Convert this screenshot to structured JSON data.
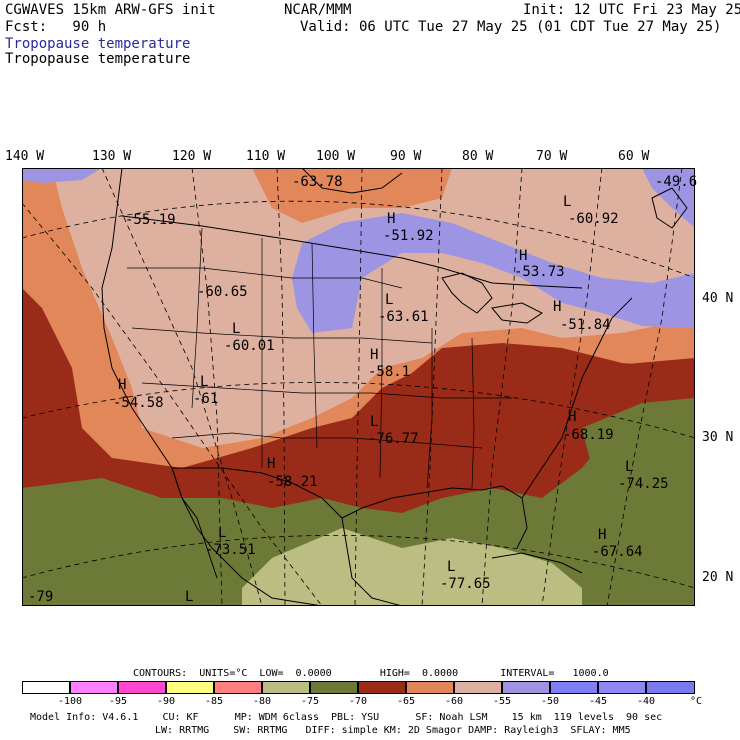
{
  "header": {
    "model": "CGWAVES 15km ARW-GFS init",
    "center": "NCAR/MMM",
    "init": "Init: 12 UTC Fri 23 May 25",
    "fcst": "Fcst:   90 h",
    "valid": "Valid: 06 UTC Tue 27 May 25 (01 CDT Tue 27 May 25)",
    "field1": "Tropopause temperature",
    "field2": "Tropopause temperature"
  },
  "map": {
    "lon_labels": [
      "140 W",
      "130 W",
      "120 W",
      "110 W",
      "100 W",
      "90 W",
      "80 W",
      "70 W",
      "60 W"
    ],
    "lat_labels": [
      "40 N",
      "30 N",
      "20 N"
    ],
    "extrema": [
      {
        "type": "",
        "value": "-63.78"
      },
      {
        "type": "",
        "value": "-49.6"
      },
      {
        "type": "L",
        "value": "-60.92"
      },
      {
        "type": "H",
        "value": "-51.92"
      },
      {
        "type": "",
        "value": "-55.19"
      },
      {
        "type": "H",
        "value": "-53.73"
      },
      {
        "type": "",
        "value": "-60.65"
      },
      {
        "type": "L",
        "value": "-63.61"
      },
      {
        "type": "H",
        "value": "-51.84"
      },
      {
        "type": "L",
        "value": "-60.01"
      },
      {
        "type": "H",
        "value": "-58.1"
      },
      {
        "type": "H",
        "value": "-54.58"
      },
      {
        "type": "L",
        "value": "-61"
      },
      {
        "type": "L",
        "value": "-76.77"
      },
      {
        "type": "H",
        "value": "-68.19"
      },
      {
        "type": "H",
        "value": "-58.21"
      },
      {
        "type": "L",
        "value": "-74.25"
      },
      {
        "type": "L",
        "value": "-73.51"
      },
      {
        "type": "H",
        "value": "-67.64"
      },
      {
        "type": "L",
        "value": "-77.65"
      },
      {
        "type": "",
        "value": "-79"
      },
      {
        "type": "L",
        "value": ""
      }
    ]
  },
  "contours": {
    "text": "CONTOURS:  UNITS=°C  LOW=  0.0000        HIGH=  0.0000       INTERVAL=   1000.0"
  },
  "colorbar": {
    "colors": [
      "#ffffff",
      "#ff7fff",
      "#ff47d1",
      "#ffff80",
      "#ff8080",
      "#bbbd82",
      "#6d7a37",
      "#9a2b18",
      "#b8401f",
      "#e2875a",
      "#ddb0a0",
      "#9d95e4",
      "#7f7ff5",
      "#8d86f4"
    ],
    "labels": [
      "-100",
      "-95",
      "-90",
      "-85",
      "-80",
      "-75",
      "-70",
      "-65",
      "-60",
      "-55",
      "-50",
      "-45",
      "-40",
      "°C"
    ]
  },
  "footer": {
    "line1": "Model Info: V4.6.1    CU: KF      MP: WDM 6class  PBL: YSU      SF: Noah LSM    15 km  119 levels  90 sec",
    "line2": "LW: RRTMG    SW: RRTMG   DIFF: simple KM: 2D Smagor DAMP: Rayleigh3  SFLAY: MM5"
  }
}
